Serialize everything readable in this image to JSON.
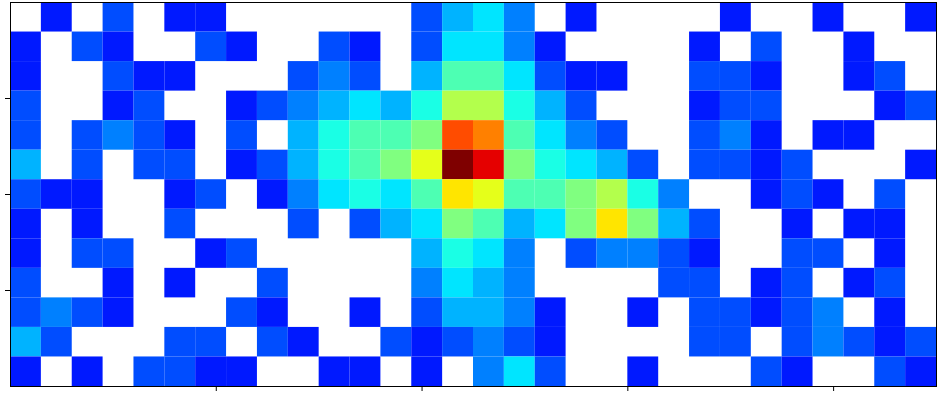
{
  "chart_data": {
    "type": "heatmap",
    "xlim": [
      0,
      4.5
    ],
    "ylim": [
      0,
      4
    ],
    "xticks": [
      1,
      2,
      3,
      4
    ],
    "yticks": [
      1,
      2,
      3
    ],
    "tick_labels": false,
    "zlim": [
      0,
      1
    ],
    "cells": [
      [
        null,
        0.15,
        null,
        0.2,
        null,
        0.15,
        0.15,
        null,
        null,
        null,
        null,
        null,
        null,
        0.2,
        0.3,
        0.35,
        0.25,
        null,
        0.15,
        null,
        null,
        null,
        null,
        0.15,
        null,
        null,
        0.15,
        null,
        null,
        0.15
      ],
      [
        0.15,
        null,
        0.2,
        0.15,
        null,
        null,
        0.2,
        0.15,
        null,
        null,
        0.2,
        0.15,
        null,
        0.2,
        0.35,
        0.35,
        0.25,
        0.15,
        null,
        null,
        null,
        null,
        0.15,
        null,
        0.2,
        null,
        null,
        0.15,
        null,
        null
      ],
      [
        0.15,
        null,
        null,
        0.2,
        0.15,
        0.15,
        null,
        null,
        null,
        0.2,
        0.25,
        0.2,
        null,
        0.3,
        0.45,
        0.45,
        0.35,
        0.2,
        0.15,
        0.15,
        null,
        null,
        0.2,
        0.2,
        0.15,
        null,
        null,
        0.15,
        0.2,
        null
      ],
      [
        0.2,
        null,
        null,
        0.15,
        0.2,
        null,
        null,
        0.15,
        0.2,
        0.25,
        0.3,
        0.35,
        0.3,
        0.4,
        0.55,
        0.55,
        0.4,
        0.3,
        0.2,
        null,
        null,
        null,
        0.15,
        0.2,
        0.2,
        null,
        null,
        null,
        0.15,
        0.2
      ],
      [
        0.2,
        null,
        0.2,
        0.25,
        0.2,
        0.15,
        null,
        0.2,
        null,
        0.3,
        0.4,
        0.45,
        0.45,
        0.5,
        0.8,
        0.75,
        0.45,
        0.35,
        0.25,
        0.2,
        null,
        null,
        0.2,
        0.25,
        0.15,
        null,
        0.15,
        0.15,
        null,
        null
      ],
      [
        0.3,
        null,
        0.2,
        null,
        0.2,
        0.2,
        null,
        0.15,
        0.2,
        0.3,
        0.4,
        0.45,
        0.5,
        0.6,
        1.0,
        0.9,
        0.5,
        0.4,
        0.35,
        0.3,
        0.2,
        null,
        0.2,
        0.2,
        0.15,
        0.2,
        null,
        null,
        null,
        0.15
      ],
      [
        0.2,
        0.15,
        0.15,
        null,
        null,
        0.15,
        0.2,
        null,
        0.15,
        0.25,
        0.35,
        0.4,
        0.35,
        0.45,
        0.65,
        0.6,
        0.45,
        0.45,
        0.5,
        0.55,
        0.4,
        0.25,
        null,
        null,
        0.15,
        0.2,
        0.15,
        null,
        0.2,
        null
      ],
      [
        0.15,
        null,
        0.15,
        null,
        null,
        0.2,
        null,
        null,
        null,
        0.2,
        null,
        0.2,
        0.3,
        0.35,
        0.5,
        0.45,
        0.3,
        0.35,
        0.5,
        0.65,
        0.5,
        0.3,
        0.2,
        null,
        null,
        0.15,
        null,
        0.15,
        0.15,
        null
      ],
      [
        0.15,
        null,
        0.2,
        0.2,
        null,
        null,
        0.15,
        0.2,
        null,
        null,
        null,
        null,
        null,
        0.3,
        0.4,
        0.35,
        0.25,
        null,
        0.2,
        0.25,
        0.25,
        0.2,
        0.15,
        null,
        null,
        0.2,
        0.2,
        null,
        0.15,
        null
      ],
      [
        0.2,
        null,
        null,
        0.15,
        null,
        0.15,
        null,
        null,
        0.2,
        null,
        null,
        null,
        null,
        0.25,
        0.35,
        0.3,
        0.25,
        null,
        null,
        null,
        null,
        0.2,
        0.2,
        null,
        0.15,
        0.2,
        null,
        0.15,
        0.2,
        null
      ],
      [
        0.2,
        0.25,
        0.2,
        0.15,
        null,
        null,
        null,
        0.2,
        0.15,
        null,
        null,
        0.15,
        null,
        0.2,
        0.3,
        0.3,
        0.25,
        0.15,
        null,
        null,
        0.15,
        null,
        0.2,
        0.2,
        0.15,
        0.2,
        0.25,
        null,
        0.15,
        null
      ],
      [
        0.3,
        0.2,
        null,
        null,
        null,
        0.2,
        0.2,
        null,
        0.2,
        0.15,
        null,
        null,
        0.2,
        0.15,
        0.2,
        0.25,
        0.2,
        0.15,
        null,
        null,
        null,
        null,
        0.2,
        0.2,
        null,
        0.2,
        0.25,
        0.2,
        0.15,
        0.2
      ],
      [
        0.15,
        null,
        0.15,
        null,
        0.2,
        0.2,
        0.15,
        0.15,
        null,
        null,
        0.15,
        0.15,
        null,
        0.15,
        null,
        0.25,
        0.35,
        0.2,
        null,
        null,
        0.15,
        null,
        null,
        null,
        0.2,
        0.15,
        null,
        null,
        0.2,
        0.15
      ]
    ]
  }
}
